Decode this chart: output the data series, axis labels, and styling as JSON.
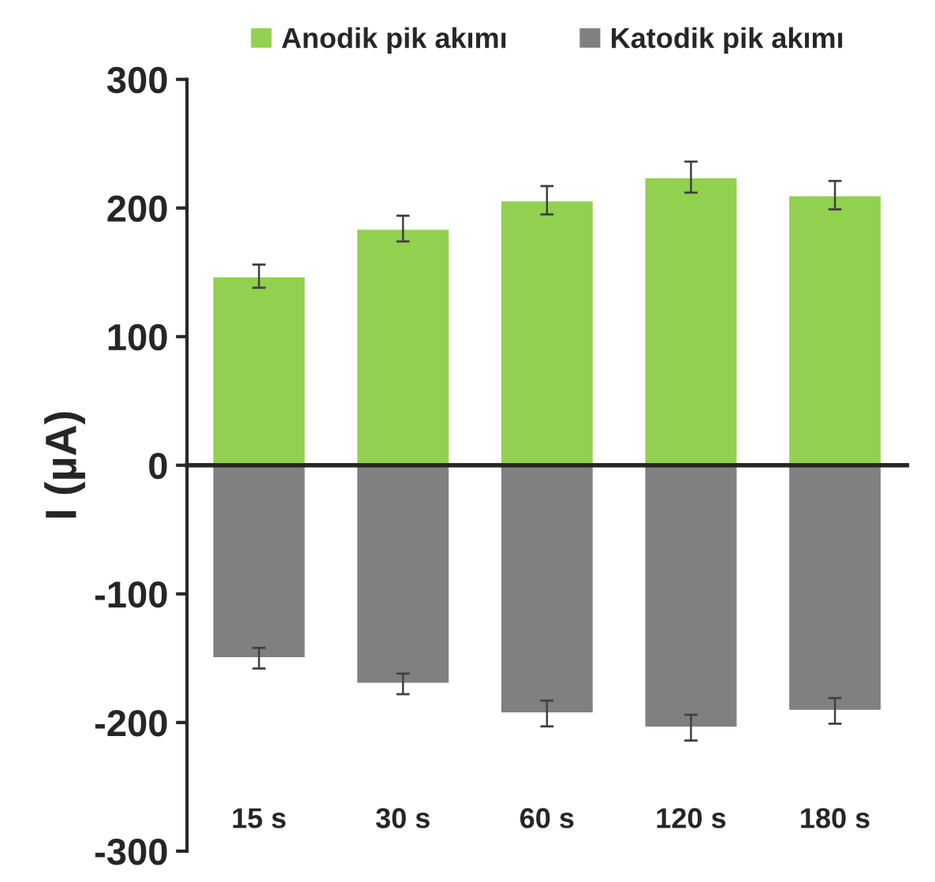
{
  "chart_data": {
    "type": "bar",
    "ylabel": "I (µA)",
    "categories": [
      "15 s",
      "30 s",
      "60 s",
      "120 s",
      "180 s"
    ],
    "series": [
      {
        "name": "Anodik pik akımı",
        "color": "#92d050",
        "values": [
          147,
          184,
          206,
          224,
          210
        ],
        "errors": [
          9,
          10,
          11,
          12,
          11
        ]
      },
      {
        "name": "Katodik pik akımı",
        "color": "#808080",
        "values": [
          -150,
          -170,
          -193,
          -204,
          -191
        ],
        "errors": [
          8,
          8,
          10,
          10,
          10
        ]
      }
    ],
    "stacked": true,
    "ylim": [
      -300,
      300
    ],
    "yticks": [
      -300,
      -200,
      -100,
      0,
      100,
      200,
      300
    ],
    "legend": "top"
  }
}
